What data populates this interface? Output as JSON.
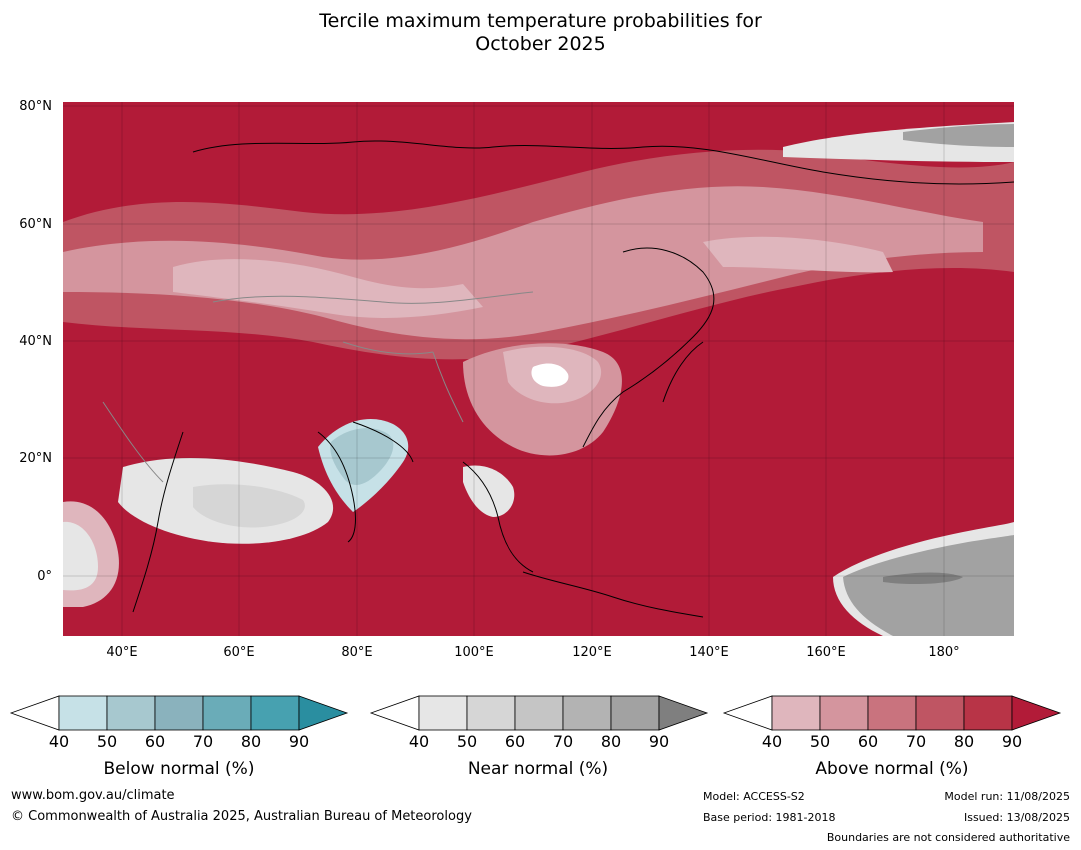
{
  "title_line1": "Tercile maximum temperature probabilities for",
  "title_line2": "October 2025",
  "map": {
    "lat_labels": [
      "80°N",
      "60°N",
      "40°N",
      "20°N",
      "0°"
    ],
    "lon_labels": [
      "40°E",
      "60°E",
      "80°E",
      "100°E",
      "120°E",
      "140°E",
      "160°E",
      "180°"
    ],
    "background_color": "#b21b38"
  },
  "legends": [
    {
      "title": "Below normal (%)",
      "ticks": [
        "40",
        "50",
        "60",
        "70",
        "80",
        "90"
      ],
      "colors": [
        "#c6e1e7",
        "#a7c8cf",
        "#8ab2bd",
        "#6aacb8",
        "#47a1b0",
        "#2a8ea0"
      ]
    },
    {
      "title": "Near normal (%)",
      "ticks": [
        "40",
        "50",
        "60",
        "70",
        "80",
        "90"
      ],
      "colors": [
        "#e6e6e6",
        "#d6d6d6",
        "#c5c5c5",
        "#b3b3b3",
        "#a2a2a2",
        "#7f7f7f"
      ]
    },
    {
      "title": "Above normal (%)",
      "ticks": [
        "40",
        "50",
        "60",
        "70",
        "80",
        "90"
      ],
      "colors": [
        "#dfb6bd",
        "#d4959e",
        "#c9737e",
        "#bf5563",
        "#b83447",
        "#b21b38"
      ]
    }
  ],
  "footer": {
    "website": "www.bom.gov.au/climate",
    "copyright": "© Commonwealth of Australia 2025, Australian Bureau of Meteorology",
    "model": "Model: ACCESS-S2",
    "base_period": "Base period: 1981-2018",
    "model_run": "Model run: 11/08/2025",
    "issued": "Issued: 13/08/2025",
    "disclaimer": "Boundaries are not considered authoritative"
  }
}
